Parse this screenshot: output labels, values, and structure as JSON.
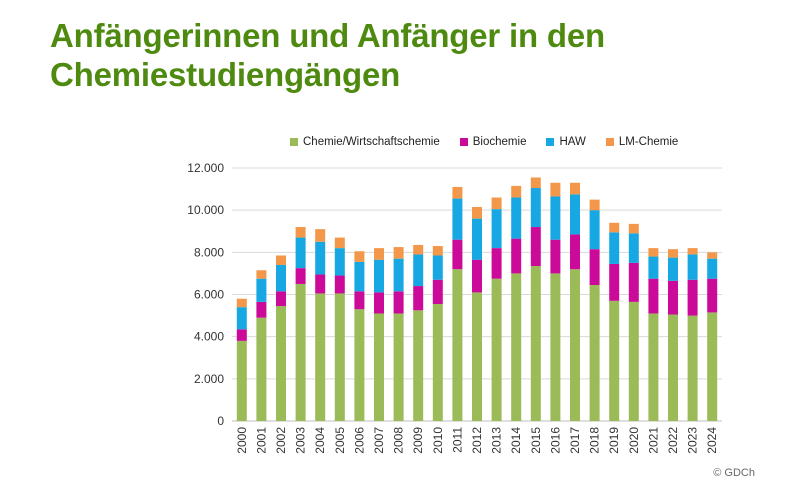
{
  "title": "Anfängerinnen und Anfänger in den Chemiestudiengängen",
  "copyright": "© GDCh",
  "colors": {
    "chemie": "#9bbb59",
    "biochemie": "#cc0a99",
    "haw": "#17a8e3",
    "lm": "#f3984b",
    "title": "#4f8a10"
  },
  "chart_data": {
    "type": "bar",
    "stacked": true,
    "title": "Anfängerinnen und Anfänger in den Chemiestudiengängen",
    "categories": [
      "2000",
      "2001",
      "2002",
      "2003",
      "2004",
      "2005",
      "2006",
      "2007",
      "2008",
      "2009",
      "2010",
      "2011",
      "2012",
      "2013",
      "2014",
      "2015",
      "2016",
      "2017",
      "2018",
      "2019",
      "2020",
      "2021",
      "2022",
      "2023",
      "2024"
    ],
    "y_ticks": [
      "0",
      "2.000",
      "4.000",
      "6.000",
      "8.000",
      "10.000",
      "12.000"
    ],
    "ylim": [
      0,
      12000
    ],
    "grid": true,
    "legend_position": "top",
    "series": [
      {
        "name": "Chemie/Wirtschaftschemie",
        "color": "#9bbb59",
        "values": [
          3800,
          4900,
          5450,
          6500,
          6050,
          6050,
          5300,
          5100,
          5100,
          5250,
          5550,
          7200,
          6100,
          6750,
          7000,
          7350,
          7000,
          7200,
          6450,
          5700,
          5650,
          5100,
          5050,
          5000,
          5150
        ]
      },
      {
        "name": "Biochemie",
        "color": "#cc0a99",
        "values": [
          550,
          750,
          700,
          750,
          900,
          850,
          850,
          1000,
          1050,
          1150,
          1150,
          1400,
          1550,
          1450,
          1650,
          1850,
          1600,
          1650,
          1700,
          1750,
          1850,
          1650,
          1600,
          1700,
          1600
        ]
      },
      {
        "name": "HAW",
        "color": "#17a8e3",
        "values": [
          1050,
          1100,
          1250,
          1450,
          1550,
          1300,
          1400,
          1550,
          1550,
          1500,
          1150,
          1950,
          1950,
          1850,
          1950,
          1850,
          2050,
          1900,
          1850,
          1500,
          1400,
          1050,
          1100,
          1200,
          950
        ]
      },
      {
        "name": "LM-Chemie",
        "color": "#f3984b",
        "values": [
          400,
          400,
          450,
          500,
          600,
          500,
          500,
          550,
          550,
          450,
          450,
          550,
          550,
          550,
          550,
          500,
          650,
          550,
          500,
          450,
          450,
          400,
          400,
          300,
          300
        ]
      }
    ]
  }
}
